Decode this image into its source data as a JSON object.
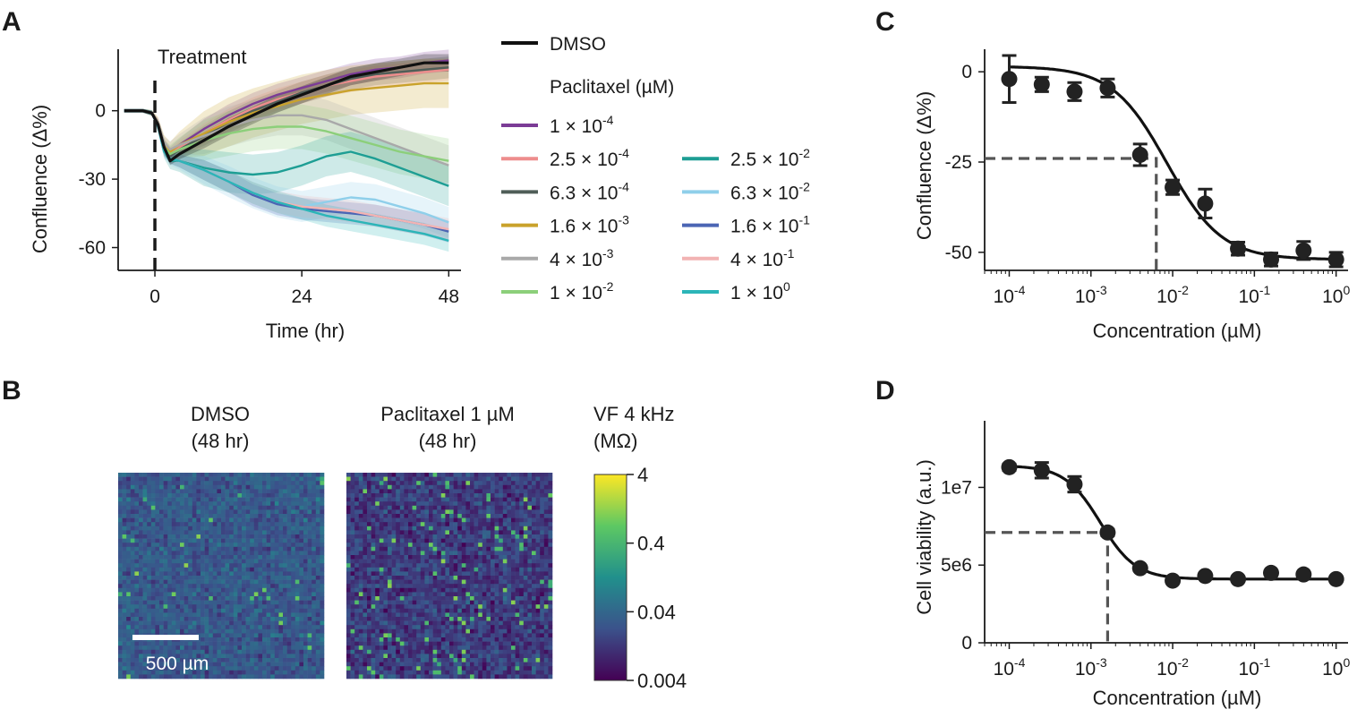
{
  "panels": {
    "A": {
      "letter": "A",
      "annotation": "Treatment",
      "chart_data": {
        "type": "line",
        "xlabel": "Time (hr)",
        "ylabel": "Confluence (Δ%)",
        "xlim": [
          -6,
          50
        ],
        "ylim": [
          -70,
          25
        ],
        "xticks": [
          0,
          24,
          48
        ],
        "yticks": [
          0,
          -30,
          -60
        ],
        "xtick_labels": [
          "0",
          "24",
          "48"
        ],
        "ytick_labels": [
          "0",
          "-30",
          "-60"
        ],
        "treatment_x": 0,
        "series": [
          {
            "key": "dmso",
            "color": "#111111",
            "width": 3.2,
            "x": [
              -5,
              -2,
              -0.5,
              0.5,
              1.5,
              2.5,
              4,
              8,
              12,
              16,
              20,
              24,
              28,
              32,
              36,
              40,
              44,
              48
            ],
            "y": [
              0,
              0,
              -1,
              -6,
              -16,
              -22,
              -19,
              -13,
              -7,
              -2,
              3,
              7,
              11,
              15,
              17,
              19,
              21,
              21
            ],
            "band": 3
          },
          {
            "key": "p1e-4",
            "color": "#7b3c96",
            "width": 2.4,
            "x": [
              -5,
              -2,
              -0.5,
              0.5,
              1.5,
              2.5,
              4,
              8,
              12,
              16,
              20,
              24,
              28,
              32,
              36,
              40,
              44,
              48
            ],
            "y": [
              0,
              0,
              -1,
              -5,
              -14,
              -18,
              -15,
              -8,
              -2,
              3,
              7,
              10,
              13,
              16,
              18,
              19,
              21,
              22
            ],
            "band": 4
          },
          {
            "key": "p2.5e-4",
            "color": "#ee8d8d",
            "width": 2.4,
            "x": [
              -5,
              -2,
              -0.5,
              0.5,
              1.5,
              2.5,
              4,
              8,
              12,
              16,
              20,
              24,
              28,
              32,
              36,
              40,
              44,
              48
            ],
            "y": [
              0,
              0,
              -1,
              -5,
              -15,
              -19,
              -16,
              -10,
              -4,
              1,
              5,
              8,
              11,
              13,
              15,
              16,
              17,
              18
            ],
            "band": 4
          },
          {
            "key": "p6.3e-4",
            "color": "#4f5e58",
            "width": 2.4,
            "x": [
              -5,
              -2,
              -0.5,
              0.5,
              1.5,
              2.5,
              4,
              8,
              12,
              16,
              20,
              24,
              28,
              32,
              36,
              40,
              44,
              48
            ],
            "y": [
              0,
              0,
              -1,
              -6,
              -16,
              -20,
              -17,
              -11,
              -5,
              0,
              4,
              8,
              11,
              14,
              16,
              17,
              18,
              19
            ],
            "band": 4
          },
          {
            "key": "p1.6e-3",
            "color": "#c9a22b",
            "width": 2.4,
            "x": [
              -5,
              -2,
              -0.5,
              0.5,
              1.5,
              2.5,
              4,
              8,
              12,
              16,
              20,
              24,
              28,
              32,
              36,
              40,
              44,
              48
            ],
            "y": [
              0,
              0,
              -1,
              -5,
              -14,
              -18,
              -15,
              -10,
              -5,
              -1,
              2,
              5,
              7,
              9,
              10,
              11,
              12,
              12
            ],
            "band": 10
          },
          {
            "key": "p4e-3",
            "color": "#a9a9a9",
            "width": 2.4,
            "x": [
              -5,
              -2,
              -0.5,
              0.5,
              1.5,
              2.5,
              4,
              8,
              12,
              16,
              20,
              24,
              28,
              32,
              36,
              40,
              44,
              48
            ],
            "y": [
              0,
              0,
              -1,
              -5,
              -14,
              -17,
              -15,
              -11,
              -7,
              -4,
              -2,
              -2,
              -4,
              -8,
              -12,
              -16,
              -20,
              -24
            ],
            "band": 8
          },
          {
            "key": "p1e-2",
            "color": "#8ccf7a",
            "width": 2.4,
            "x": [
              -5,
              -2,
              -0.5,
              0.5,
              1.5,
              2.5,
              4,
              8,
              12,
              16,
              20,
              24,
              28,
              32,
              36,
              40,
              44,
              48
            ],
            "y": [
              0,
              0,
              -1,
              -6,
              -16,
              -19,
              -17,
              -13,
              -10,
              -8,
              -7,
              -7,
              -9,
              -12,
              -15,
              -18,
              -20,
              -22
            ],
            "band": 9
          },
          {
            "key": "p2.5e-2",
            "color": "#1e9e94",
            "width": 2.4,
            "x": [
              -5,
              -2,
              -0.5,
              0.5,
              1.5,
              2.5,
              4,
              8,
              12,
              16,
              20,
              24,
              28,
              32,
              36,
              40,
              44,
              48
            ],
            "y": [
              0,
              0,
              -1,
              -7,
              -18,
              -22,
              -22,
              -25,
              -27,
              -28,
              -27,
              -24,
              -20,
              -18,
              -21,
              -25,
              -29,
              -33
            ],
            "band": 8
          },
          {
            "key": "p6.3e-2",
            "color": "#8fcfea",
            "width": 2.4,
            "x": [
              -5,
              -2,
              -0.5,
              0.5,
              1.5,
              2.5,
              4,
              8,
              12,
              16,
              20,
              24,
              28,
              32,
              36,
              40,
              44,
              48
            ],
            "y": [
              0,
              0,
              -1,
              -7,
              -18,
              -21,
              -22,
              -26,
              -31,
              -36,
              -40,
              -42,
              -40,
              -38,
              -39,
              -42,
              -45,
              -49
            ],
            "band": 6
          },
          {
            "key": "p1.6e-1",
            "color": "#4b65b4",
            "width": 2.4,
            "x": [
              -5,
              -2,
              -0.5,
              0.5,
              1.5,
              2.5,
              4,
              8,
              12,
              16,
              20,
              24,
              28,
              32,
              36,
              40,
              44,
              48
            ],
            "y": [
              0,
              0,
              -1,
              -7,
              -18,
              -21,
              -22,
              -26,
              -31,
              -37,
              -41,
              -43,
              -44,
              -45,
              -46,
              -48,
              -50,
              -53
            ],
            "band": 4
          },
          {
            "key": "p4e-1",
            "color": "#f2b3b3",
            "width": 2.4,
            "x": [
              -5,
              -2,
              -0.5,
              0.5,
              1.5,
              2.5,
              4,
              8,
              12,
              16,
              20,
              24,
              28,
              32,
              36,
              40,
              44,
              48
            ],
            "y": [
              0,
              0,
              -1,
              -7,
              -18,
              -21,
              -22,
              -26,
              -31,
              -36,
              -40,
              -42,
              -43,
              -44,
              -46,
              -48,
              -50,
              -52
            ],
            "band": 4
          },
          {
            "key": "p1e0",
            "color": "#2bb5b8",
            "width": 2.4,
            "x": [
              -5,
              -2,
              -0.5,
              0.5,
              1.5,
              2.5,
              4,
              8,
              12,
              16,
              20,
              24,
              28,
              32,
              36,
              40,
              44,
              48
            ],
            "y": [
              0,
              0,
              -1,
              -7,
              -18,
              -21,
              -22,
              -26,
              -31,
              -36,
              -40,
              -43,
              -46,
              -48,
              -50,
              -52,
              -54,
              -57
            ],
            "band": 4
          }
        ],
        "legend": {
          "placement": "right",
          "dmso_label": "DMSO",
          "dmso_color": "#111111",
          "group_title": "Paclitaxel (µM)",
          "entries": [
            {
              "key": "p1e-4",
              "mant": "1 × 10",
              "exp": "-4",
              "color": "#7b3c96"
            },
            {
              "key": "p2.5e-4",
              "mant": "2.5 × 10",
              "exp": "-4",
              "color": "#ee8d8d"
            },
            {
              "key": "p6.3e-4",
              "mant": "6.3 × 10",
              "exp": "-4",
              "color": "#4f5e58"
            },
            {
              "key": "p1.6e-3",
              "mant": "1.6 × 10",
              "exp": "-3",
              "color": "#c9a22b"
            },
            {
              "key": "p4e-3",
              "mant": "4 × 10",
              "exp": "-3",
              "color": "#a9a9a9"
            },
            {
              "key": "p1e-2",
              "mant": "1 × 10",
              "exp": "-2",
              "color": "#8ccf7a"
            },
            {
              "key": "p2.5e-2",
              "mant": "2.5 × 10",
              "exp": "-2",
              "color": "#1e9e94"
            },
            {
              "key": "p6.3e-2",
              "mant": "6.3 × 10",
              "exp": "-2",
              "color": "#8fcfea"
            },
            {
              "key": "p1.6e-1",
              "mant": "1.6 × 10",
              "exp": "-1",
              "color": "#4b65b4"
            },
            {
              "key": "p4e-1",
              "mant": "4 × 10",
              "exp": "-1",
              "color": "#f2b3b3"
            },
            {
              "key": "p1e0",
              "mant": "1 × 10",
              "exp": "0",
              "color": "#2bb5b8"
            }
          ]
        }
      }
    },
    "B": {
      "letter": "B",
      "left_title_1": "DMSO",
      "left_title_2": "(48 hr)",
      "right_title_1": "Paclitaxel 1 µM",
      "right_title_2": "(48 hr)",
      "colorbar_title_1": "VF 4 kHz",
      "colorbar_title_2": "(MΩ)",
      "colorbar_ticks": [
        "4",
        "0.4",
        "0.04",
        "0.004"
      ],
      "colormap": [
        "#440154",
        "#3b528b",
        "#21908c",
        "#5dc863",
        "#fde725"
      ],
      "scalebar_label": "500 µm",
      "chart_data": {
        "type": "heatmap",
        "scale": "log",
        "range": [
          0.004,
          4
        ],
        "grid": [
          50,
          50
        ],
        "maps": [
          {
            "name": "DMSO (48 hr)",
            "median_log10": -1.55,
            "spread": 0.45,
            "hot_fraction": 0.012
          },
          {
            "name": "Paclitaxel 1 µM (48 hr)",
            "median_log10": -1.85,
            "spread": 0.55,
            "hot_fraction": 0.045
          }
        ]
      }
    },
    "C": {
      "letter": "C",
      "chart_data": {
        "type": "scatter",
        "xlabel": "Concentration (µM)",
        "ylabel": "Confluence (Δ%)",
        "xscale": "log",
        "xlim": [
          5e-05,
          1.4
        ],
        "ylim": [
          -55,
          5
        ],
        "yticks": [
          0,
          -25,
          -50
        ],
        "ytick_labels": [
          "0",
          "-25",
          "-50"
        ],
        "xticks": [
          0.0001,
          0.001,
          0.01,
          0.1,
          1
        ],
        "xtick_exps": [
          "-4",
          "-3",
          "-2",
          "-1",
          "0"
        ],
        "points": {
          "x": [
            0.0001,
            0.00025,
            0.00063,
            0.0016,
            0.004,
            0.01,
            0.025,
            0.063,
            0.16,
            0.4,
            1.0
          ],
          "y": [
            -2,
            -3.5,
            -5.5,
            -4.5,
            -23,
            -32,
            -36.5,
            -49,
            -52,
            -49.5,
            -52
          ],
          "err": [
            6.5,
            2,
            2.5,
            2.5,
            3,
            2,
            4,
            1.8,
            1.8,
            2.5,
            2
          ]
        },
        "fit": {
          "bottom": -52,
          "top": 1.5,
          "ec50": 0.0085,
          "hill": 1.3
        },
        "guide": {
          "x": 0.0063,
          "y": -24
        }
      }
    },
    "D": {
      "letter": "D",
      "chart_data": {
        "type": "scatter",
        "xlabel": "Concentration (µM)",
        "ylabel": "Cell viability (a.u.)",
        "xscale": "log",
        "xlim": [
          5e-05,
          1.4
        ],
        "ylim": [
          0,
          14000000
        ],
        "yticks": [
          0,
          5000000,
          10000000
        ],
        "ytick_labels": [
          "0",
          "5e6",
          "1e7"
        ],
        "xticks": [
          0.0001,
          0.001,
          0.01,
          0.1,
          1
        ],
        "xtick_exps": [
          "-4",
          "-3",
          "-2",
          "-1",
          "0"
        ],
        "points": {
          "x": [
            0.0001,
            0.00025,
            0.00063,
            0.0016,
            0.004,
            0.01,
            0.025,
            0.063,
            0.16,
            0.4,
            1.0
          ],
          "y": [
            11300000,
            11100000,
            10200000,
            7100000,
            4800000,
            4000000,
            4300000,
            4100000,
            4500000,
            4400000,
            4100000
          ],
          "err": [
            200000,
            500000,
            500000,
            200000,
            150000,
            150000,
            100000,
            100000,
            100000,
            100000,
            100000
          ]
        },
        "fit": {
          "bottom": 4100000,
          "top": 11400000,
          "ec50": 0.0013,
          "hill": 2.0
        },
        "guide": {
          "x": 0.0016,
          "y": 7100000
        }
      }
    }
  }
}
